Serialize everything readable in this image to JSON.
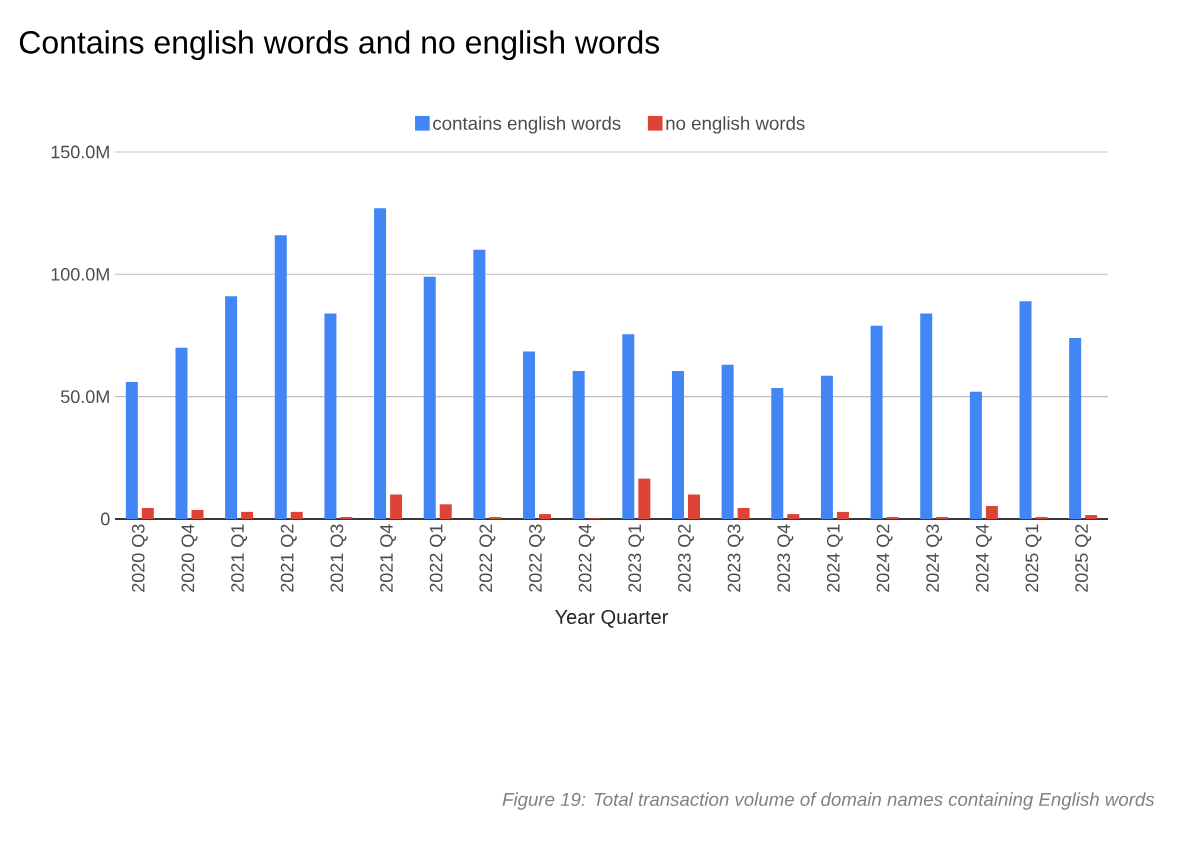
{
  "chart_data": {
    "type": "bar",
    "title": "Contains english words and no english words",
    "xlabel": "Year Quarter",
    "categories": [
      "2020 Q3",
      "2020 Q4",
      "2021 Q1",
      "2021 Q2",
      "2021 Q3",
      "2021 Q4",
      "2022 Q1",
      "2022 Q2",
      "2022 Q3",
      "2022 Q4",
      "2023 Q1",
      "2023 Q2",
      "2023 Q3",
      "2023 Q4",
      "2024 Q1",
      "2024 Q2",
      "2024 Q3",
      "2024 Q4",
      "2025 Q1",
      "2025 Q2"
    ],
    "series": [
      {
        "name": "contains english words",
        "color": "#4285f4",
        "values": [
          56,
          70,
          91,
          116,
          84,
          127,
          99,
          110,
          68.5,
          60.5,
          75.5,
          60.5,
          63,
          53.5,
          58.5,
          79,
          84,
          52,
          89,
          74
        ]
      },
      {
        "name": "no english words",
        "color": "#db4437",
        "values": [
          4.5,
          3.7,
          2.9,
          2.9,
          0.8,
          10,
          6,
          0.8,
          2,
          0.3,
          16.5,
          10,
          4.5,
          2,
          2.9,
          0.8,
          0.8,
          5.3,
          0.8,
          1.6
        ]
      }
    ],
    "ylim": [
      0,
      150
    ],
    "yticks": [
      0,
      {
        "value": 50,
        "label": "50.0M"
      },
      {
        "value": 100,
        "label": "100.0M"
      },
      {
        "value": 150,
        "label": "150.0M"
      }
    ],
    "grid": "y",
    "legend": "top",
    "annotations": [
      "Figure 19: Total transaction volume of domain names containing English words"
    ]
  }
}
